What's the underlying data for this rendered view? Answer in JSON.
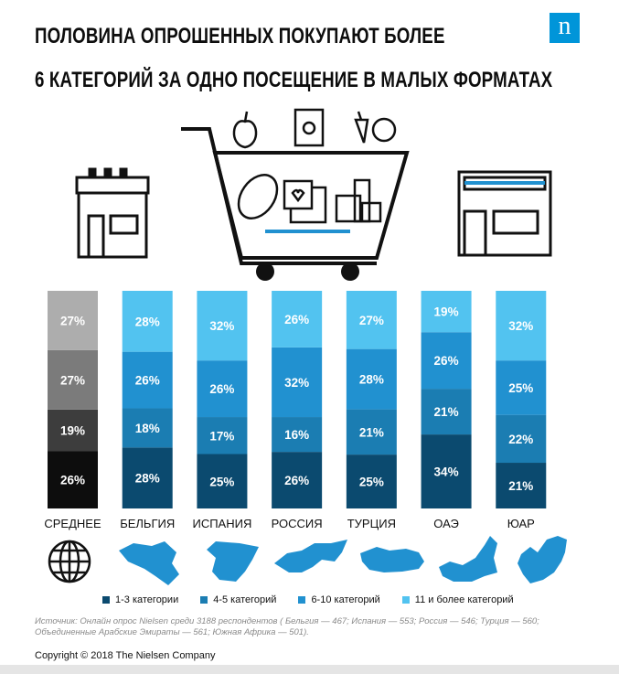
{
  "title_line1": "ПОЛОВИНА ОПРОШЕННЫХ ПОКУПАЮТ БОЛЕЕ",
  "title_line2": "6 КАТЕГОРИЙ ЗА ОДНО ПОСЕЩЕНИЕ В МАЛЫХ ФОРМАТАХ",
  "logo": "n",
  "source": "Источник: Онлайн опрос Nielsen среди 3188 респондентов ( Бельгия — 467; Испания — 553; Россия — 546; Турция — 560; Объединенные Арабские Эмираты — 561; Южная Африка — 501).",
  "copyright": "Copyright © 2018 The Nielsen Company",
  "colors": {
    "dark_blue": "#0b4a6f",
    "mid_blue": "#1b7db2",
    "blue": "#2191d0",
    "light_blue": "#52c3f0",
    "avg_black": "#0d0d0d",
    "avg_dark": "#3d3d3d",
    "avg_mid": "#7b7b7b",
    "avg_light": "#adadad"
  },
  "icons": [
    "shop-icon",
    "shopping-cart-icon",
    "apple-icon",
    "bag-icon",
    "vegetables-icon",
    "bread-icon",
    "chocolate-icon",
    "milk-icon",
    "kiosk-icon",
    "globe-icon",
    "belgium-map-icon",
    "spain-map-icon",
    "russia-map-icon",
    "turkey-map-icon",
    "uae-map-icon",
    "south-africa-map-icon"
  ],
  "chart_data": {
    "type": "bar",
    "stacked": true,
    "categories": [
      "СРЕДНЕЕ",
      "БЕЛЬГИЯ",
      "ИСПАНИЯ",
      "РОССИЯ",
      "ТУРЦИЯ",
      "ОАЭ",
      "ЮАР"
    ],
    "series": [
      {
        "name": "1-3 категории",
        "values": [
          26,
          28,
          25,
          26,
          25,
          34,
          21
        ],
        "labels": [
          "26%",
          "28%",
          "25%",
          "26%",
          "25%",
          "34%",
          "21%"
        ]
      },
      {
        "name": "4-5 категорий",
        "values": [
          19,
          18,
          17,
          16,
          21,
          21,
          22
        ],
        "labels": [
          "19%",
          "18%",
          "17%",
          "16%",
          "21%",
          "21%",
          "22%"
        ]
      },
      {
        "name": "6-10 категорий",
        "values": [
          27,
          26,
          26,
          32,
          28,
          26,
          25
        ],
        "labels": [
          "27%",
          "26%",
          "26%",
          "32%",
          "28%",
          "26%",
          "25%"
        ]
      },
      {
        "name": "11 и более категорий",
        "values": [
          27,
          28,
          32,
          26,
          27,
          19,
          32
        ],
        "labels": [
          "27%",
          "28%",
          "32%",
          "26%",
          "27%",
          "19%",
          "32%"
        ]
      }
    ],
    "legend_position": "bottom",
    "grid": false
  }
}
